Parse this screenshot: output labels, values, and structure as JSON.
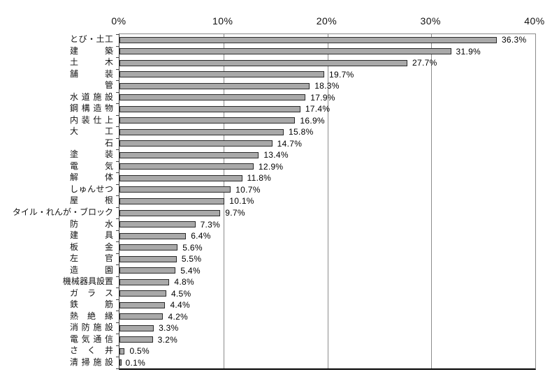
{
  "chart_data": {
    "type": "bar",
    "orientation": "horizontal",
    "title": "",
    "xlabel": "",
    "ylabel": "",
    "xlim": [
      0,
      40
    ],
    "x_ticks": [
      "0%",
      "10%",
      "20%",
      "30%",
      "40%"
    ],
    "x_tick_values": [
      0,
      10,
      20,
      30,
      40
    ],
    "gridlines_at": [
      10,
      20,
      30
    ],
    "unit": "%",
    "legend": null,
    "bar_color": "#a9a9a9",
    "bar_border_color": "#2b2b2b",
    "categories": [
      "とび・土工",
      "建築",
      "土木",
      "舗装",
      "管",
      "水道施設",
      "鋼構造物",
      "内装仕上",
      "大工",
      "石",
      "塗装",
      "電気",
      "解体",
      "しゅんせつ",
      "屋根",
      "タイル・れんが・ブロック",
      "防水",
      "建具",
      "板金",
      "左官",
      "造園",
      "機械器具設置",
      "ガラス",
      "鉄筋",
      "熱絶縁",
      "消防施設",
      "電気通信",
      "さく井",
      "清掃施設"
    ],
    "values": [
      36.3,
      31.9,
      27.7,
      19.7,
      18.3,
      17.9,
      17.4,
      16.9,
      15.8,
      14.7,
      13.4,
      12.9,
      11.8,
      10.7,
      10.1,
      9.7,
      7.3,
      6.4,
      5.6,
      5.5,
      5.4,
      4.8,
      4.5,
      4.4,
      4.2,
      3.3,
      3.2,
      0.5,
      0.1
    ],
    "value_labels": [
      "36.3%",
      "31.9%",
      "27.7%",
      "19.7%",
      "18.3%",
      "17.9%",
      "17.4%",
      "16.9%",
      "15.8%",
      "14.7%",
      "13.4%",
      "12.9%",
      "11.8%",
      "10.7%",
      "10.1%",
      "9.7%",
      "7.3%",
      "6.4%",
      "5.6%",
      "5.5%",
      "5.4%",
      "4.8%",
      "4.5%",
      "4.4%",
      "4.2%",
      "3.3%",
      "3.2%",
      "0.5%",
      "0.1%"
    ]
  }
}
